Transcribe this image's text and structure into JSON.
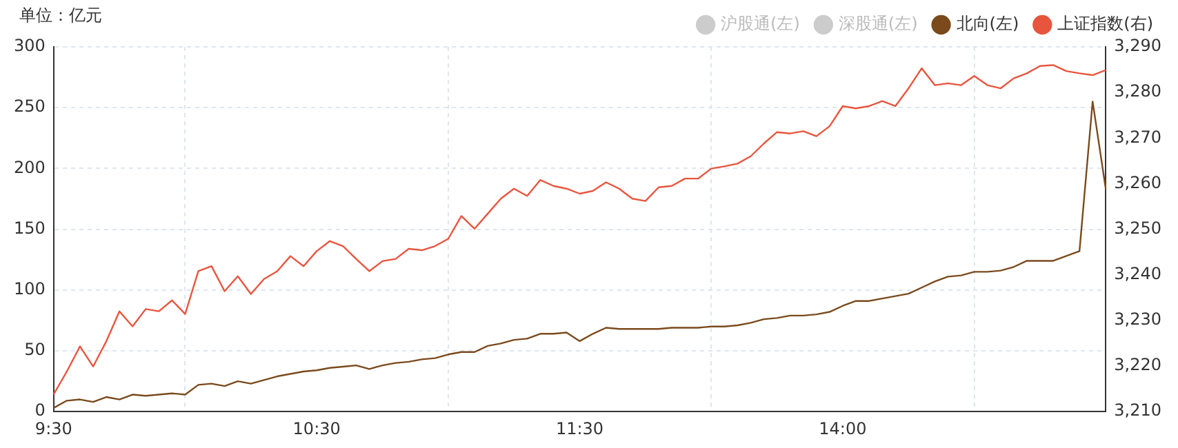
{
  "chart_data": {
    "type": "line",
    "ylabel": "单位：亿元",
    "legend": "top right",
    "grid": true,
    "marker": "none",
    "line_style": "solid",
    "categories": [
      "9:30",
      null,
      null,
      null,
      null,
      null,
      null,
      null,
      null,
      null,
      null,
      null,
      null,
      null,
      null,
      null,
      null,
      null,
      null,
      null,
      "10:30",
      null,
      null,
      null,
      null,
      null,
      null,
      null,
      null,
      null,
      null,
      null,
      null,
      null,
      null,
      null,
      null,
      null,
      null,
      null,
      "11:30",
      null,
      null,
      null,
      null,
      null,
      null,
      null,
      null,
      null,
      null,
      null,
      null,
      null,
      null,
      null,
      null,
      null,
      null,
      null,
      "14:00",
      null,
      null,
      null,
      null,
      null,
      null,
      null,
      null,
      null,
      null,
      null,
      null,
      null,
      null,
      null,
      null,
      null,
      null,
      null,
      null
    ],
    "ylim": [
      0,
      300
    ],
    "yticks": [
      0,
      50,
      100,
      150,
      200,
      250,
      300
    ],
    "y2lim": [
      3210,
      3290
    ],
    "y2ticks": [
      {
        "value": 3210,
        "label": "3,210"
      },
      {
        "value": 3220,
        "label": "3,220"
      },
      {
        "value": 3230,
        "label": "3,230"
      },
      {
        "value": 3240,
        "label": "3,240"
      },
      {
        "value": 3250,
        "label": "3,250"
      },
      {
        "value": 3260,
        "label": "3,260"
      },
      {
        "value": 3270,
        "label": "3,270"
      },
      {
        "value": 3280,
        "label": "3,280"
      },
      {
        "value": 3290,
        "label": "3,290"
      }
    ],
    "series": [
      {
        "name": "沪股通(左)",
        "color": "#cccccc",
        "values": [
          null,
          null,
          null,
          null,
          null,
          null,
          null,
          null,
          null,
          null,
          null,
          null,
          null,
          null,
          null,
          null,
          null,
          null,
          null,
          null,
          null,
          null,
          null,
          null,
          null,
          null,
          null,
          null,
          null,
          null,
          null,
          null,
          null,
          null,
          null,
          null,
          null,
          null,
          null,
          null,
          null,
          null,
          null,
          null,
          null,
          null,
          null,
          null,
          null,
          null,
          null,
          null,
          null,
          null,
          null,
          null,
          null,
          null,
          null,
          null,
          null,
          null,
          null,
          null,
          null,
          null,
          null,
          null,
          null,
          null,
          null,
          null,
          null,
          null,
          null,
          null,
          null,
          null,
          null,
          null,
          null
        ]
      },
      {
        "name": "深股通(左)",
        "color": "#cccccc",
        "values": [
          null,
          null,
          null,
          null,
          null,
          null,
          null,
          null,
          null,
          null,
          null,
          null,
          null,
          null,
          null,
          null,
          null,
          null,
          null,
          null,
          null,
          null,
          null,
          null,
          null,
          null,
          null,
          null,
          null,
          null,
          null,
          null,
          null,
          null,
          null,
          null,
          null,
          null,
          null,
          null,
          null,
          null,
          null,
          null,
          null,
          null,
          null,
          null,
          null,
          null,
          null,
          null,
          null,
          null,
          null,
          null,
          null,
          null,
          null,
          null,
          null,
          null,
          null,
          null,
          null,
          null,
          null,
          null,
          null,
          null,
          null,
          null,
          null,
          null,
          null,
          null,
          null,
          null,
          null,
          null,
          null
        ]
      },
      {
        "name": "北向(左)",
        "color": "#7a4a1c",
        "values": [
          3,
          9,
          10,
          8,
          12,
          10,
          14,
          13,
          14,
          15,
          14,
          22,
          23,
          21,
          25,
          23,
          26,
          29,
          31,
          33,
          34,
          36,
          37,
          38,
          35,
          38,
          40,
          41,
          43,
          44,
          47,
          49,
          49,
          54,
          56,
          59,
          60,
          64,
          64,
          65,
          58,
          64,
          69,
          68,
          68,
          68,
          68,
          69,
          69,
          69,
          70,
          70,
          71,
          73,
          76,
          77,
          79,
          79,
          80,
          82,
          87,
          91,
          91,
          93,
          95,
          97,
          102,
          107,
          111,
          112,
          115,
          115,
          116,
          119,
          124,
          124,
          124,
          128,
          132,
          255,
          183
        ]
      },
      {
        "name": "上证指数(右)",
        "color": "#e8553e",
        "axis": "y2",
        "values": [
          3213.8,
          3218.8,
          3224.3,
          3219.9,
          3225.4,
          3232,
          3228.7,
          3232.5,
          3232,
          3234.4,
          3231.4,
          3240.8,
          3241.9,
          3236.4,
          3239.7,
          3235.8,
          3239.1,
          3240.8,
          3244.1,
          3241.9,
          3245.2,
          3247.4,
          3246.3,
          3243.5,
          3240.8,
          3243,
          3243.5,
          3245.7,
          3245.4,
          3246.3,
          3247.9,
          3252.9,
          3250.1,
          3253.4,
          3256.7,
          3258.9,
          3257.3,
          3260.8,
          3259.5,
          3258.9,
          3257.8,
          3258.4,
          3260.3,
          3258.9,
          3256.7,
          3256.2,
          3259.2,
          3259.5,
          3261.1,
          3261.1,
          3263.3,
          3263.8,
          3264.4,
          3266,
          3268.8,
          3271.3,
          3271,
          3271.5,
          3270.4,
          3272.6,
          3277,
          3276.5,
          3277,
          3278.1,
          3277,
          3280.9,
          3285.3,
          3281.6,
          3282,
          3281.6,
          3283.6,
          3281.6,
          3280.9,
          3283.1,
          3284.2,
          3285.8,
          3286,
          3284.7,
          3284.2,
          3283.8,
          3284.9
        ]
      }
    ]
  }
}
